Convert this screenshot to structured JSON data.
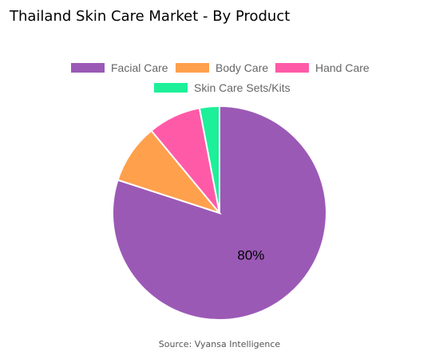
{
  "chart_data": {
    "type": "pie",
    "title": "Thailand Skin Care Market - By Product",
    "categories": [
      "Facial Care",
      "Body Care",
      "Hand Care",
      "Skin Care Sets/Kits"
    ],
    "values": [
      80,
      9,
      8,
      3
    ],
    "colors": [
      "#9B59B6",
      "#FFA04D",
      "#FF5AA8",
      "#1DF099"
    ],
    "data_labels": [
      "80%",
      "",
      "",
      ""
    ],
    "legend_position": "top",
    "unit": "%"
  },
  "source": "Source: Vyansa Intelligence"
}
